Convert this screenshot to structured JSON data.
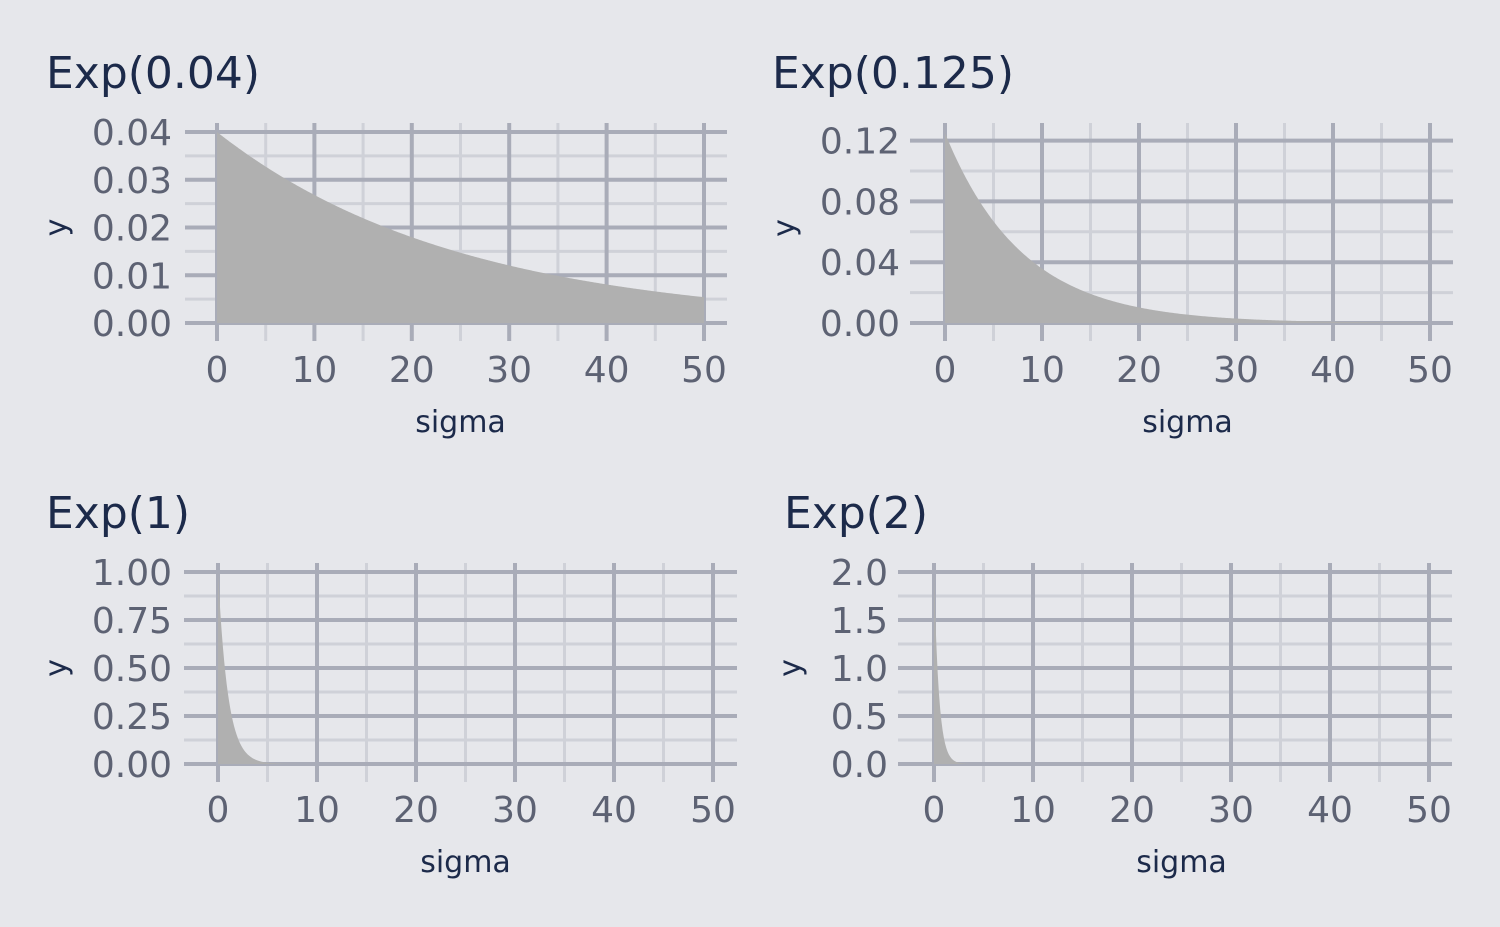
{
  "chart_data": [
    {
      "type": "area",
      "title": "Exp(0.04)",
      "rate": 0.04,
      "xlabel": "sigma",
      "ylabel": "y",
      "xlim": [
        0,
        50
      ],
      "ylim": [
        0,
        0.04
      ],
      "x_ticks": [
        0,
        10,
        20,
        30,
        40,
        50
      ],
      "x_tick_labels": [
        "0",
        "10",
        "20",
        "30",
        "40",
        "50"
      ],
      "y_ticks": [
        0,
        0.01,
        0.02,
        0.03,
        0.04
      ],
      "y_tick_labels": [
        "0.00",
        "0.01",
        "0.02",
        "0.03",
        "0.04"
      ],
      "grid": true,
      "fill_color": "#b0b0b0"
    },
    {
      "type": "area",
      "title": "Exp(0.125)",
      "rate": 0.125,
      "xlabel": "sigma",
      "ylabel": "y",
      "xlim": [
        0,
        50
      ],
      "ylim": [
        0,
        0.125
      ],
      "x_ticks": [
        0,
        10,
        20,
        30,
        40,
        50
      ],
      "x_tick_labels": [
        "0",
        "10",
        "20",
        "30",
        "40",
        "50"
      ],
      "y_ticks": [
        0,
        0.04,
        0.08,
        0.12
      ],
      "y_tick_labels": [
        "0.00",
        "0.04",
        "0.08",
        "0.12"
      ],
      "grid": true,
      "fill_color": "#b0b0b0"
    },
    {
      "type": "area",
      "title": "Exp(1)",
      "rate": 1,
      "xlabel": "sigma",
      "ylabel": "y",
      "xlim": [
        0,
        50
      ],
      "ylim": [
        0,
        1
      ],
      "x_ticks": [
        0,
        10,
        20,
        30,
        40,
        50
      ],
      "x_tick_labels": [
        "0",
        "10",
        "20",
        "30",
        "40",
        "50"
      ],
      "y_ticks": [
        0,
        0.25,
        0.5,
        0.75,
        1
      ],
      "y_tick_labels": [
        "0.00",
        "0.25",
        "0.50",
        "0.75",
        "1.00"
      ],
      "grid": true,
      "fill_color": "#b0b0b0"
    },
    {
      "type": "area",
      "title": "Exp(2)",
      "rate": 2,
      "xlabel": "sigma",
      "ylabel": "y",
      "xlim": [
        0,
        50
      ],
      "ylim": [
        0,
        2
      ],
      "x_ticks": [
        0,
        10,
        20,
        30,
        40,
        50
      ],
      "x_tick_labels": [
        "0",
        "10",
        "20",
        "30",
        "40",
        "50"
      ],
      "y_ticks": [
        0,
        0.5,
        1,
        1.5,
        2
      ],
      "y_tick_labels": [
        "0.0",
        "0.5",
        "1.0",
        "1.5",
        "2.0"
      ],
      "grid": true,
      "fill_color": "#b0b0b0"
    }
  ]
}
